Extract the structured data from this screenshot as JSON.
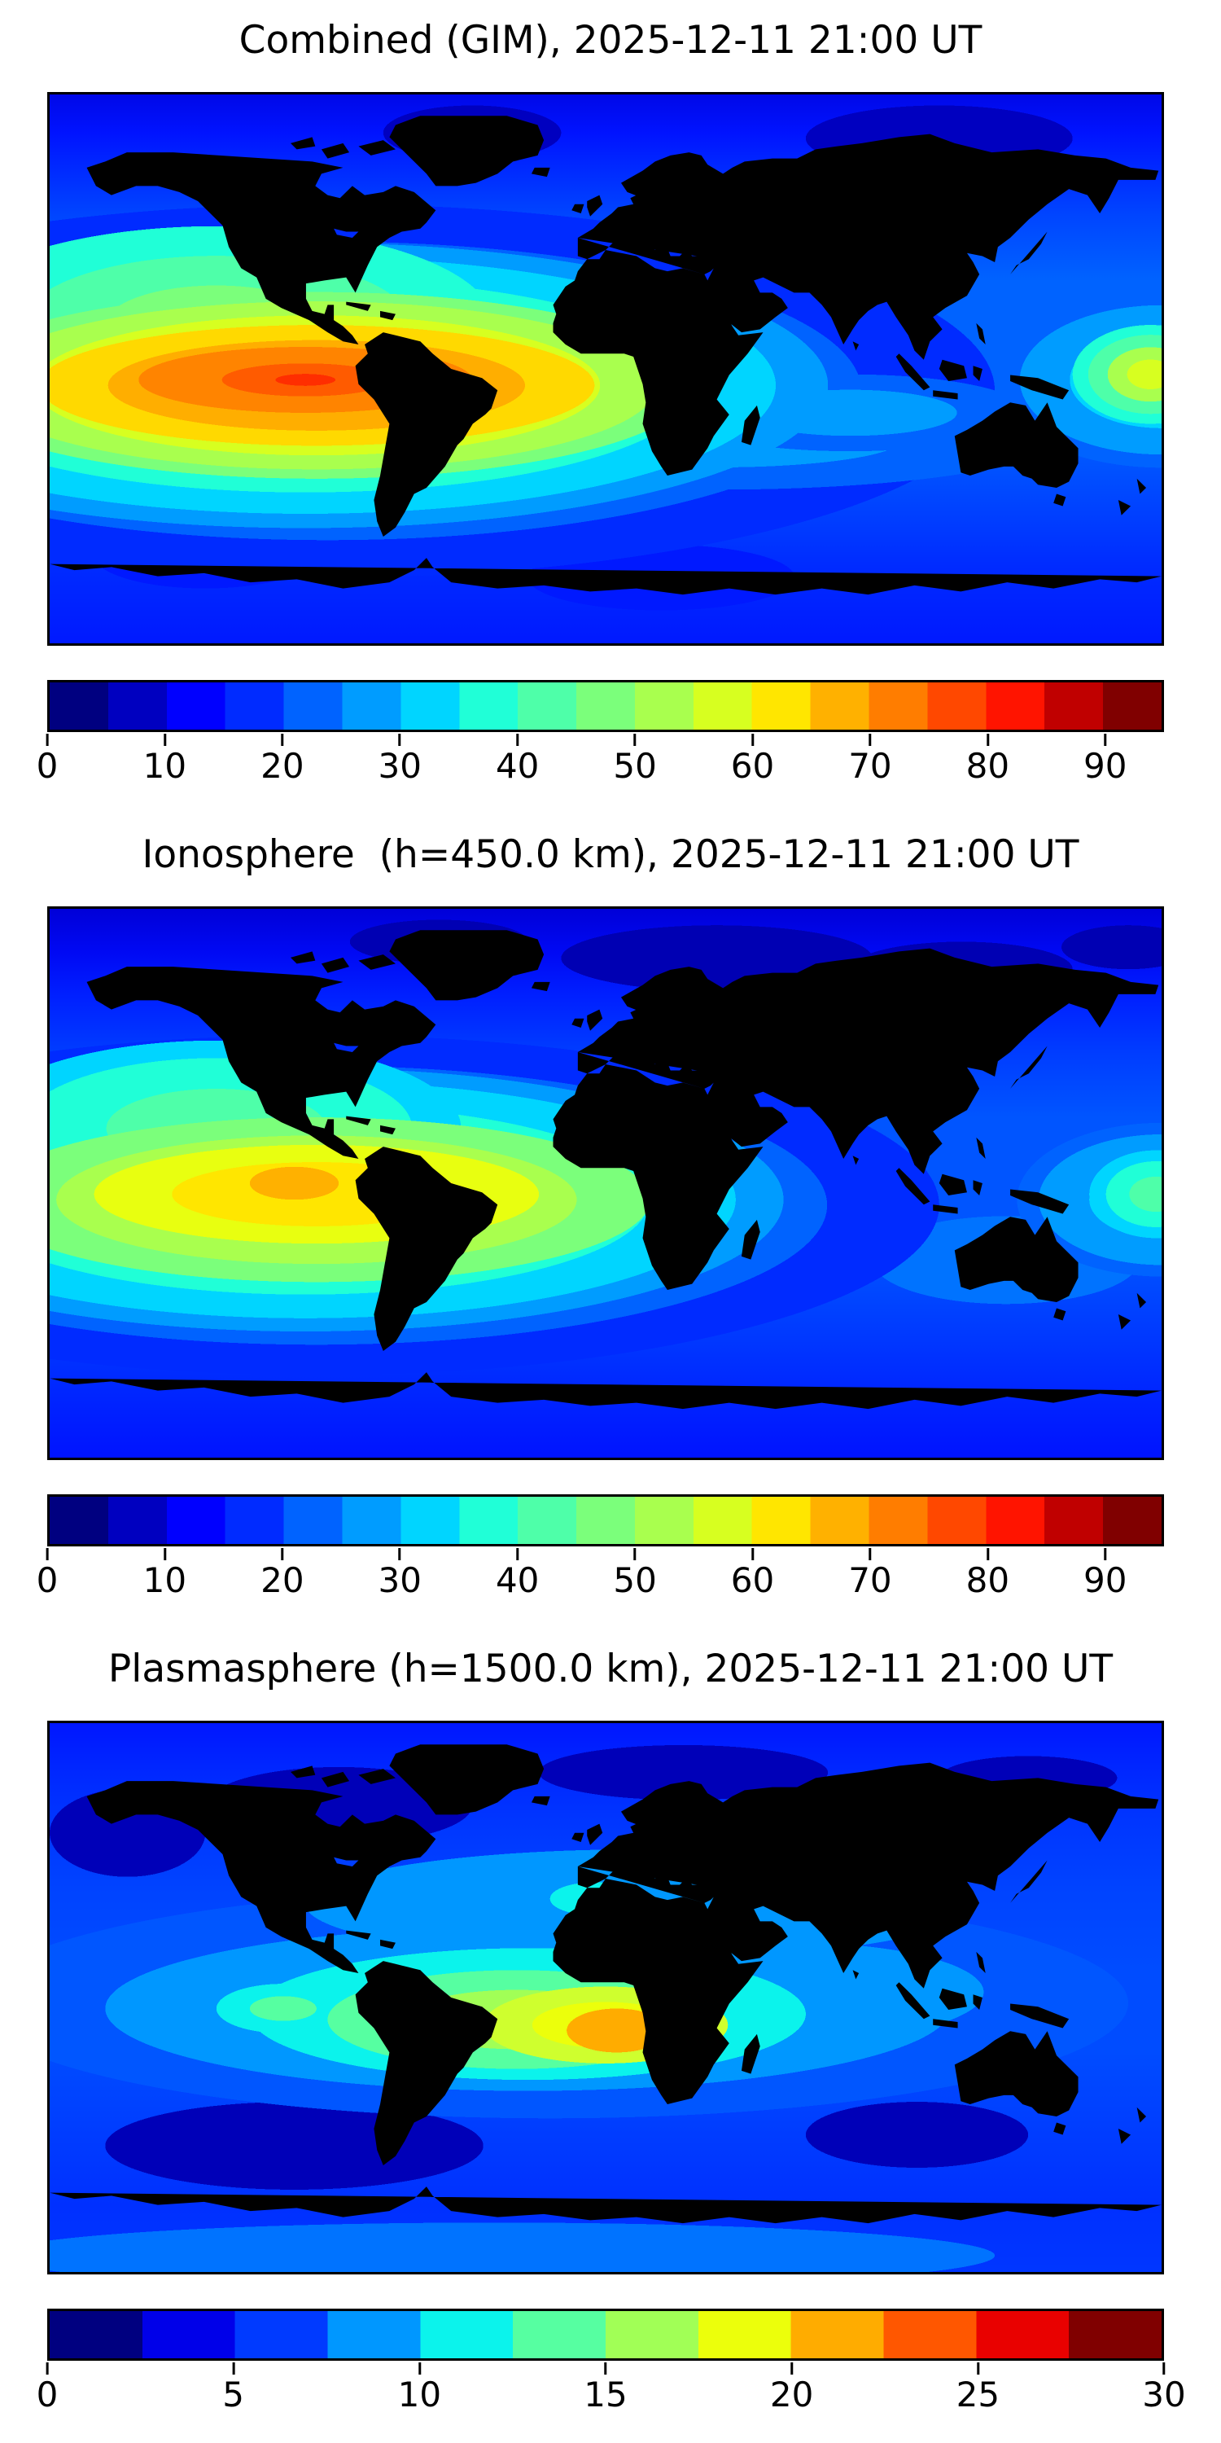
{
  "panels": [
    {
      "id": "combined",
      "title": "Combined (GIM), 2025-12-11 21:00 UT",
      "colorbar": {
        "min": 0,
        "max": 95,
        "ticks": [
          0,
          10,
          20,
          30,
          40,
          50,
          60,
          70,
          80,
          90
        ],
        "segment_colors": [
          "#000080",
          "#0000c0",
          "#0000ff",
          "#002bff",
          "#0063ff",
          "#009cff",
          "#00d5ff",
          "#20ffd7",
          "#4effa9",
          "#7bff7b",
          "#a9ff4e",
          "#d7ff20",
          "#ffe600",
          "#ffb100",
          "#ff7d00",
          "#ff4800",
          "#ff1400",
          "#c00000",
          "#800000"
        ]
      }
    },
    {
      "id": "ionosphere",
      "title": "Ionosphere  (h=450.0 km), 2025-12-11 21:00 UT",
      "colorbar": {
        "min": 0,
        "max": 95,
        "ticks": [
          0,
          10,
          20,
          30,
          40,
          50,
          60,
          70,
          80,
          90
        ],
        "segment_colors": [
          "#000080",
          "#0000c0",
          "#0000ff",
          "#002bff",
          "#0063ff",
          "#009cff",
          "#00d5ff",
          "#20ffd7",
          "#4effa9",
          "#7bff7b",
          "#a9ff4e",
          "#d7ff20",
          "#ffe600",
          "#ffb100",
          "#ff7d00",
          "#ff4800",
          "#ff1400",
          "#c00000",
          "#800000"
        ]
      }
    },
    {
      "id": "plasmasphere",
      "title": "Plasmasphere (h=1500.0 km), 2025-12-11 21:00 UT",
      "colorbar": {
        "min": 0,
        "max": 30,
        "ticks": [
          0,
          5,
          10,
          15,
          20,
          25,
          30
        ],
        "segment_colors": [
          "#000080",
          "#0000e9",
          "#003aff",
          "#0097ff",
          "#0bf3ec",
          "#56ffa1",
          "#a1ff56",
          "#ecff0b",
          "#ffac00",
          "#ff5700",
          "#e90100",
          "#800000"
        ]
      }
    }
  ],
  "chart_data": [
    {
      "type": "heatmap",
      "subtype": "filled-contour-world-map",
      "title": "Combined (GIM), 2025-12-11 21:00 UT",
      "colormap": "jet",
      "extent": {
        "lon": [
          -180,
          180
        ],
        "lat": [
          -90,
          90
        ]
      },
      "scale": {
        "min": 0,
        "max": 95,
        "contour_step": 5,
        "colorbar_ticks": [
          0,
          10,
          20,
          30,
          40,
          50,
          60,
          70,
          80,
          90
        ]
      },
      "legend_position": "bottom",
      "grid": false,
      "features": [
        {
          "name": "equatorial-anomaly-peak",
          "lon": -95,
          "lat": -8,
          "approx_peak_value": 90
        },
        {
          "name": "secondary-enhancement-africa",
          "lon": 8,
          "lat": -2,
          "approx_peak_value": 55
        },
        {
          "name": "west-pacific-edge-enhancement",
          "lon": 176,
          "lat": -3,
          "approx_peak_value": 60
        },
        {
          "name": "polar-minimum-north",
          "lat": 75,
          "approx_value": 8
        }
      ]
    },
    {
      "type": "heatmap",
      "subtype": "filled-contour-world-map",
      "title": "Ionosphere  (h=450.0 km), 2025-12-11 21:00 UT",
      "colormap": "jet",
      "extent": {
        "lon": [
          -180,
          180
        ],
        "lat": [
          -90,
          90
        ]
      },
      "scale": {
        "min": 0,
        "max": 95,
        "contour_step": 5,
        "colorbar_ticks": [
          0,
          10,
          20,
          30,
          40,
          50,
          60,
          70,
          80,
          90
        ]
      },
      "legend_position": "bottom",
      "grid": false,
      "features": [
        {
          "name": "equatorial-anomaly-peak",
          "lon": -100,
          "lat": -5,
          "approx_peak_value": 70
        },
        {
          "name": "secondary-enhancement-africa",
          "lon": 10,
          "lat": -7,
          "approx_peak_value": 40
        },
        {
          "name": "west-pacific-edge-enhancement",
          "lon": 177,
          "lat": -5,
          "approx_peak_value": 50
        },
        {
          "name": "polar-minimum-north",
          "lat": 75,
          "approx_value": 5
        }
      ]
    },
    {
      "type": "heatmap",
      "subtype": "filled-contour-world-map",
      "title": "Plasmasphere (h=1500.0 km), 2025-12-11 21:00 UT",
      "colormap": "jet",
      "extent": {
        "lon": [
          -180,
          180
        ],
        "lat": [
          -90,
          90
        ]
      },
      "scale": {
        "min": 0,
        "max": 30,
        "contour_step": 2.5,
        "colorbar_ticks": [
          0,
          5,
          10,
          15,
          20,
          25,
          30
        ]
      },
      "legend_position": "bottom",
      "grid": false,
      "features": [
        {
          "name": "equatorial-band-peak-atlantic",
          "lon": 4,
          "lat": -13,
          "approx_peak_value": 22
        },
        {
          "name": "equatorial-band-peak-south-america",
          "lon": -60,
          "lat": -7,
          "approx_peak_value": 19
        },
        {
          "name": "south-pacific-minimum",
          "lon": -100,
          "lat": -48,
          "approx_value": 3
        },
        {
          "name": "north-america-minimum",
          "lon": -85,
          "lat": 62,
          "approx_value": 3
        }
      ]
    }
  ]
}
